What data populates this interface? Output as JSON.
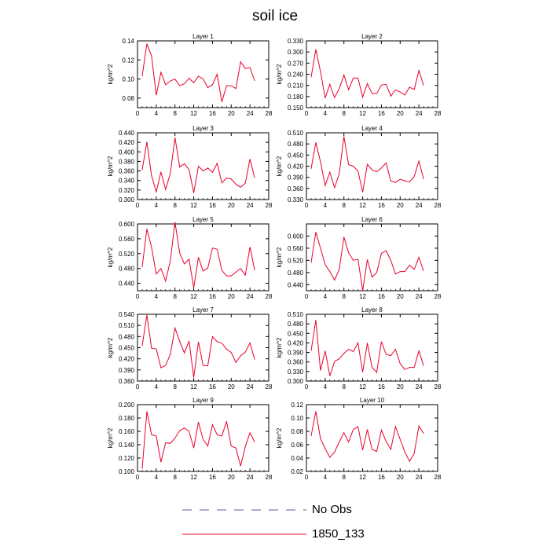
{
  "title": "soil ice",
  "legend": {
    "entries": [
      {
        "label": "No Obs",
        "style": "dashed",
        "color": "#5a5aa8"
      },
      {
        "label": "1850_133",
        "style": "solid",
        "color": "#e8002a"
      }
    ]
  },
  "chart_data": [
    {
      "type": "line",
      "title": "Layer 1",
      "ylabel": "kg/m^2",
      "xlim": [
        0,
        28
      ],
      "ylim": [
        0.07,
        0.14
      ],
      "xticks": [
        "0",
        "4",
        "8",
        "12",
        "16",
        "20",
        "24",
        "28"
      ],
      "yticks": [
        "0.08",
        "0.10",
        "0.12",
        "0.14"
      ],
      "x": [
        1,
        2,
        3,
        4,
        5,
        6,
        7,
        8,
        9,
        10,
        11,
        12,
        13,
        14,
        15,
        16,
        17,
        18,
        19,
        20,
        21,
        22,
        23,
        24,
        25
      ],
      "series": [
        {
          "name": "1850_133",
          "color": "#e8002a",
          "values": [
            0.103,
            0.137,
            0.124,
            0.083,
            0.107,
            0.094,
            0.098,
            0.1,
            0.093,
            0.095,
            0.101,
            0.096,
            0.103,
            0.1,
            0.091,
            0.094,
            0.105,
            0.076,
            0.093,
            0.093,
            0.09,
            0.118,
            0.111,
            0.112,
            0.098
          ]
        }
      ]
    },
    {
      "type": "line",
      "title": "Layer 2",
      "ylabel": "kg/m^2",
      "xlim": [
        0,
        28
      ],
      "ylim": [
        0.15,
        0.33
      ],
      "xticks": [
        "0",
        "4",
        "8",
        "12",
        "16",
        "20",
        "24",
        "28"
      ],
      "yticks": [
        "0.150",
        "0.180",
        "0.210",
        "0.240",
        "0.270",
        "0.300",
        "0.330"
      ],
      "x": [
        1,
        2,
        3,
        4,
        5,
        6,
        7,
        8,
        9,
        10,
        11,
        12,
        13,
        14,
        15,
        16,
        17,
        18,
        19,
        20,
        21,
        22,
        23,
        24,
        25
      ],
      "series": [
        {
          "name": "1850_133",
          "color": "#e8002a",
          "values": [
            0.232,
            0.307,
            0.247,
            0.176,
            0.213,
            0.177,
            0.201,
            0.238,
            0.198,
            0.23,
            0.23,
            0.178,
            0.215,
            0.188,
            0.188,
            0.211,
            0.213,
            0.181,
            0.198,
            0.192,
            0.184,
            0.205,
            0.199,
            0.25,
            0.21
          ]
        }
      ]
    },
    {
      "type": "line",
      "title": "Layer 3",
      "ylabel": "kg/m^2",
      "xlim": [
        0,
        28
      ],
      "ylim": [
        0.3,
        0.44
      ],
      "xticks": [
        "0",
        "4",
        "8",
        "12",
        "16",
        "20",
        "24",
        "28"
      ],
      "yticks": [
        "0.300",
        "0.320",
        "0.340",
        "0.360",
        "0.380",
        "0.400",
        "0.420",
        "0.440"
      ],
      "x": [
        1,
        2,
        3,
        4,
        5,
        6,
        7,
        8,
        9,
        10,
        11,
        12,
        13,
        14,
        15,
        16,
        17,
        18,
        19,
        20,
        21,
        22,
        23,
        24,
        25
      ],
      "series": [
        {
          "name": "1850_133",
          "color": "#e8002a",
          "values": [
            0.362,
            0.421,
            0.35,
            0.316,
            0.358,
            0.321,
            0.355,
            0.43,
            0.368,
            0.375,
            0.363,
            0.314,
            0.37,
            0.36,
            0.366,
            0.357,
            0.376,
            0.335,
            0.345,
            0.343,
            0.332,
            0.326,
            0.334,
            0.385,
            0.346
          ]
        }
      ]
    },
    {
      "type": "line",
      "title": "Layer 4",
      "ylabel": "kg/m^2",
      "xlim": [
        0,
        28
      ],
      "ylim": [
        0.33,
        0.51
      ],
      "xticks": [
        "0",
        "4",
        "8",
        "12",
        "16",
        "20",
        "24",
        "28"
      ],
      "yticks": [
        "0.330",
        "0.360",
        "0.390",
        "0.420",
        "0.450",
        "0.480",
        "0.510"
      ],
      "x": [
        1,
        2,
        3,
        4,
        5,
        6,
        7,
        8,
        9,
        10,
        11,
        12,
        13,
        14,
        15,
        16,
        17,
        18,
        19,
        20,
        21,
        22,
        23,
        24,
        25
      ],
      "series": [
        {
          "name": "1850_133",
          "color": "#e8002a",
          "values": [
            0.413,
            0.484,
            0.432,
            0.368,
            0.404,
            0.362,
            0.399,
            0.5,
            0.424,
            0.42,
            0.407,
            0.35,
            0.425,
            0.41,
            0.405,
            0.415,
            0.429,
            0.38,
            0.376,
            0.385,
            0.38,
            0.378,
            0.392,
            0.434,
            0.385
          ]
        }
      ]
    },
    {
      "type": "line",
      "title": "Layer 5",
      "ylabel": "kg/m^2",
      "xlim": [
        0,
        28
      ],
      "ylim": [
        0.42,
        0.6
      ],
      "xticks": [
        "0",
        "4",
        "8",
        "12",
        "16",
        "20",
        "24",
        "28"
      ],
      "yticks": [
        "0.440",
        "0.480",
        "0.520",
        "0.560",
        "0.600"
      ],
      "x": [
        1,
        2,
        3,
        4,
        5,
        6,
        7,
        8,
        9,
        10,
        11,
        12,
        13,
        14,
        15,
        16,
        17,
        18,
        19,
        20,
        21,
        22,
        23,
        24,
        25
      ],
      "series": [
        {
          "name": "1850_133",
          "color": "#e8002a",
          "values": [
            0.484,
            0.587,
            0.537,
            0.465,
            0.48,
            0.446,
            0.5,
            0.605,
            0.522,
            0.492,
            0.505,
            0.428,
            0.51,
            0.473,
            0.481,
            0.535,
            0.532,
            0.475,
            0.46,
            0.46,
            0.47,
            0.48,
            0.462,
            0.538,
            0.475
          ]
        }
      ]
    },
    {
      "type": "line",
      "title": "Layer 6",
      "ylabel": "kg/m^2",
      "xlim": [
        0,
        28
      ],
      "ylim": [
        0.42,
        0.64
      ],
      "xticks": [
        "0",
        "4",
        "8",
        "12",
        "16",
        "20",
        "24",
        "28"
      ],
      "yticks": [
        "0.440",
        "0.480",
        "0.520",
        "0.560",
        "0.600"
      ],
      "x": [
        1,
        2,
        3,
        4,
        5,
        6,
        7,
        8,
        9,
        10,
        11,
        12,
        13,
        14,
        15,
        16,
        17,
        18,
        19,
        20,
        21,
        22,
        23,
        24,
        25
      ],
      "series": [
        {
          "name": "1850_133",
          "color": "#e8002a",
          "values": [
            0.512,
            0.613,
            0.56,
            0.506,
            0.483,
            0.455,
            0.49,
            0.597,
            0.545,
            0.52,
            0.524,
            0.42,
            0.523,
            0.465,
            0.48,
            0.543,
            0.552,
            0.52,
            0.475,
            0.483,
            0.483,
            0.504,
            0.49,
            0.53,
            0.485
          ]
        }
      ]
    },
    {
      "type": "line",
      "title": "Layer 7",
      "ylabel": "kg/m^2",
      "xlim": [
        0,
        28
      ],
      "ylim": [
        0.36,
        0.54
      ],
      "xticks": [
        "0",
        "4",
        "8",
        "12",
        "16",
        "20",
        "24",
        "28"
      ],
      "yticks": [
        "0.360",
        "0.390",
        "0.420",
        "0.450",
        "0.480",
        "0.510",
        "0.540"
      ],
      "x": [
        1,
        2,
        3,
        4,
        5,
        6,
        7,
        8,
        9,
        10,
        11,
        12,
        13,
        14,
        15,
        16,
        17,
        18,
        19,
        20,
        21,
        22,
        23,
        24,
        25
      ],
      "series": [
        {
          "name": "1850_133",
          "color": "#e8002a",
          "values": [
            0.455,
            0.538,
            0.448,
            0.447,
            0.396,
            0.402,
            0.432,
            0.503,
            0.467,
            0.436,
            0.468,
            0.37,
            0.466,
            0.402,
            0.401,
            0.48,
            0.466,
            0.462,
            0.446,
            0.437,
            0.41,
            0.428,
            0.438,
            0.463,
            0.418
          ]
        }
      ]
    },
    {
      "type": "line",
      "title": "Layer 8",
      "ylabel": "kg/m^2",
      "xlim": [
        0,
        28
      ],
      "ylim": [
        0.3,
        0.51
      ],
      "xticks": [
        "0",
        "4",
        "8",
        "12",
        "16",
        "20",
        "24",
        "28"
      ],
      "yticks": [
        "0.300",
        "0.330",
        "0.360",
        "0.390",
        "0.420",
        "0.450",
        "0.480",
        "0.510"
      ],
      "x": [
        1,
        2,
        3,
        4,
        5,
        6,
        7,
        8,
        9,
        10,
        11,
        12,
        13,
        14,
        15,
        16,
        17,
        18,
        19,
        20,
        21,
        22,
        23,
        24,
        25
      ],
      "series": [
        {
          "name": "1850_133",
          "color": "#e8002a",
          "values": [
            0.395,
            0.492,
            0.333,
            0.395,
            0.316,
            0.362,
            0.37,
            0.387,
            0.4,
            0.393,
            0.42,
            0.328,
            0.42,
            0.343,
            0.327,
            0.424,
            0.384,
            0.38,
            0.4,
            0.355,
            0.336,
            0.343,
            0.343,
            0.395,
            0.348
          ]
        }
      ]
    },
    {
      "type": "line",
      "title": "Layer 9",
      "ylabel": "kg/m^2",
      "xlim": [
        0,
        28
      ],
      "ylim": [
        0.1,
        0.2
      ],
      "xticks": [
        "0",
        "4",
        "8",
        "12",
        "16",
        "20",
        "24",
        "28"
      ],
      "yticks": [
        "0.100",
        "0.120",
        "0.140",
        "0.160",
        "0.180",
        "0.200"
      ],
      "x": [
        1,
        2,
        3,
        4,
        5,
        6,
        7,
        8,
        9,
        10,
        11,
        12,
        13,
        14,
        15,
        16,
        17,
        18,
        19,
        20,
        21,
        22,
        23,
        24,
        25
      ],
      "series": [
        {
          "name": "1850_133",
          "color": "#e8002a",
          "values": [
            0.104,
            0.19,
            0.155,
            0.153,
            0.114,
            0.143,
            0.142,
            0.15,
            0.161,
            0.165,
            0.16,
            0.135,
            0.174,
            0.148,
            0.138,
            0.17,
            0.155,
            0.153,
            0.175,
            0.138,
            0.135,
            0.108,
            0.137,
            0.158,
            0.144
          ]
        }
      ]
    },
    {
      "type": "line",
      "title": "Layer 10",
      "ylabel": "kg/m^2",
      "xlim": [
        0,
        28
      ],
      "ylim": [
        0.02,
        0.12
      ],
      "xticks": [
        "0",
        "4",
        "8",
        "12",
        "16",
        "20",
        "24",
        "28"
      ],
      "yticks": [
        "0.02",
        "0.04",
        "0.06",
        "0.08",
        "0.10",
        "0.12"
      ],
      "x": [
        1,
        2,
        3,
        4,
        5,
        6,
        7,
        8,
        9,
        10,
        11,
        12,
        13,
        14,
        15,
        16,
        17,
        18,
        19,
        20,
        21,
        22,
        23,
        24,
        25
      ],
      "series": [
        {
          "name": "1850_133",
          "color": "#e8002a",
          "values": [
            0.073,
            0.11,
            0.069,
            0.054,
            0.041,
            0.049,
            0.064,
            0.078,
            0.064,
            0.083,
            0.087,
            0.052,
            0.083,
            0.053,
            0.05,
            0.082,
            0.065,
            0.053,
            0.087,
            0.068,
            0.049,
            0.035,
            0.047,
            0.088,
            0.077
          ]
        }
      ]
    }
  ]
}
